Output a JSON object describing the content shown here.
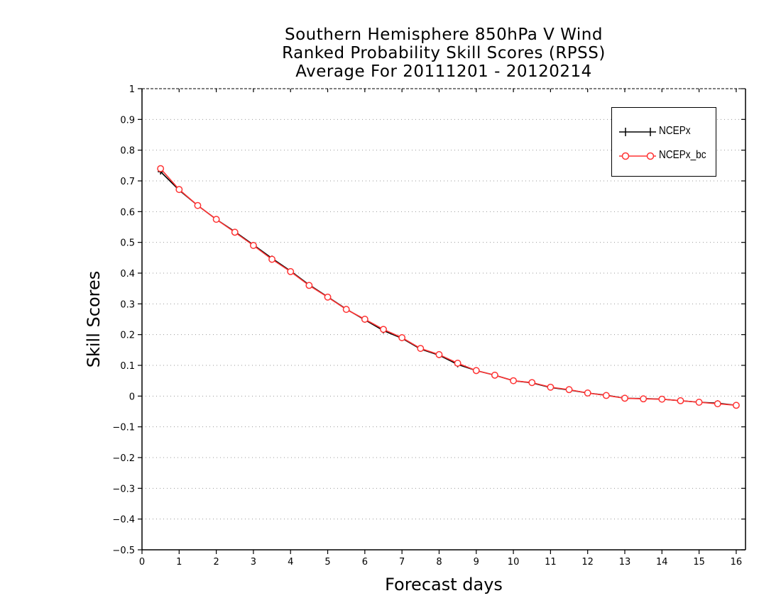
{
  "chart_data": {
    "type": "line",
    "title_lines": [
      "Southern Hemisphere 850hPa V Wind",
      "Ranked Probability Skill Scores (RPSS)",
      "Average For 20111201 - 20120214"
    ],
    "xlabel": "Forecast days",
    "ylabel": "Skill Scores",
    "xlim": [
      0,
      16.25
    ],
    "ylim": [
      -0.5,
      1.0
    ],
    "x_ticks": [
      0,
      1,
      2,
      3,
      4,
      5,
      6,
      7,
      8,
      9,
      10,
      11,
      12,
      13,
      14,
      15,
      16
    ],
    "y_ticks": [
      -0.5,
      -0.4,
      -0.3,
      -0.2,
      -0.1,
      0,
      0.1,
      0.2,
      0.3,
      0.4,
      0.5,
      0.6,
      0.7,
      0.8,
      0.9,
      1
    ],
    "grid": "horizontal dotted",
    "legend_position": "top-right",
    "x": [
      0.5,
      1.0,
      1.5,
      2.0,
      2.5,
      3.0,
      3.5,
      4.0,
      4.5,
      5.0,
      5.5,
      6.0,
      6.5,
      7.0,
      7.5,
      8.0,
      8.5,
      9.0,
      9.5,
      10.0,
      10.5,
      11.0,
      11.5,
      12.0,
      12.5,
      13.0,
      13.5,
      14.0,
      14.5,
      15.0,
      15.5,
      16.0
    ],
    "series": [
      {
        "name": "NCEPx",
        "color": "#000000",
        "marker": "plus",
        "values": [
          0.73,
          0.67,
          0.62,
          0.575,
          0.535,
          0.492,
          0.448,
          0.407,
          0.362,
          0.323,
          0.283,
          0.248,
          0.213,
          0.188,
          0.153,
          0.133,
          0.103,
          0.083,
          0.068,
          0.05,
          0.043,
          0.028,
          0.02,
          0.01,
          0.003,
          -0.007,
          -0.008,
          -0.01,
          -0.015,
          -0.02,
          -0.023,
          -0.03
        ]
      },
      {
        "name": "NCEPx_bc",
        "color": "#ff3333",
        "marker": "circle",
        "values": [
          0.74,
          0.672,
          0.62,
          0.575,
          0.533,
          0.49,
          0.445,
          0.405,
          0.36,
          0.322,
          0.282,
          0.25,
          0.217,
          0.19,
          0.155,
          0.135,
          0.107,
          0.083,
          0.068,
          0.05,
          0.044,
          0.029,
          0.021,
          0.01,
          0.002,
          -0.007,
          -0.009,
          -0.01,
          -0.015,
          -0.02,
          -0.025,
          -0.03
        ]
      }
    ]
  }
}
